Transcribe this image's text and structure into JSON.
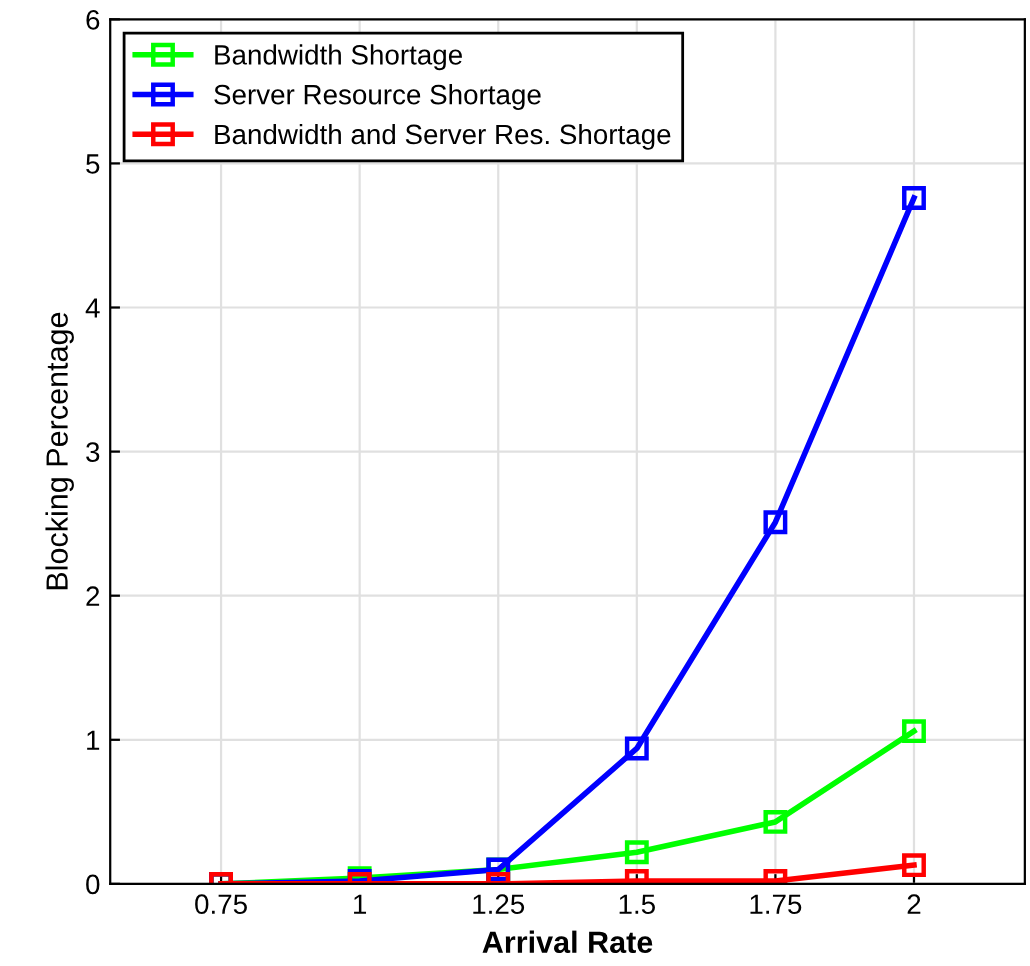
{
  "chart_data": {
    "type": "line",
    "xlabel": "Arrival Rate",
    "ylabel": "Blocking Percentage",
    "x": [
      0.75,
      1,
      1.25,
      1.5,
      1.75,
      2
    ],
    "series": [
      {
        "name": "Bandwidth Shortage",
        "color": "#00ff00",
        "values": [
          0,
          0.04,
          0.1,
          0.22,
          0.43,
          1.06
        ]
      },
      {
        "name": "Server Resource Shortage",
        "color": "#0000ff",
        "values": [
          0,
          0.02,
          0.1,
          0.94,
          2.51,
          4.76
        ]
      },
      {
        "name": "Bandwidth and Server Res. Shortage",
        "color": "#ff0000",
        "values": [
          0,
          0,
          0,
          0.02,
          0.02,
          0.13
        ]
      }
    ],
    "xlim": [
      0.55,
      2.2
    ],
    "xticks": [
      0.75,
      1,
      1.25,
      1.5,
      1.75,
      2
    ],
    "ylim": [
      0,
      6
    ],
    "yticks": [
      0,
      1,
      2,
      3,
      4,
      5,
      6
    ],
    "grid": true,
    "legend": "top left",
    "marker": "square",
    "line_style": "solid"
  }
}
